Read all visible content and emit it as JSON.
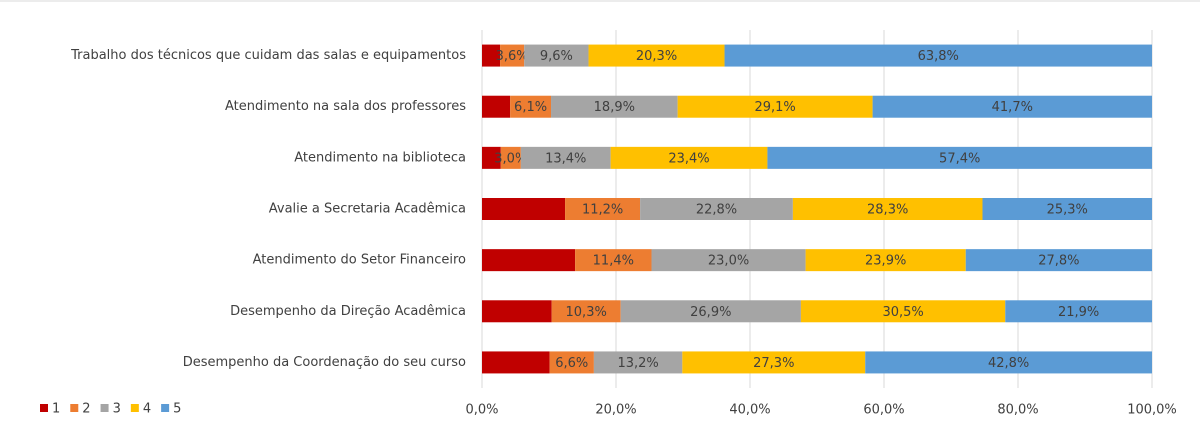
{
  "chart_data": {
    "type": "stacked_barh",
    "categories": [
      "Trabalho dos técnicos que cuidam das salas e equipamentos",
      "Atendimento na sala dos professores",
      "Atendimento na biblioteca",
      "Avalie a Secretaria Acadêmica",
      "Atendimento do Setor Financeiro",
      "Desempenho da Direção Acadêmica",
      "Desempenho da Coordenação do seu curso"
    ],
    "series": [
      {
        "name": "1",
        "color": "#c00000",
        "values": [
          2.7,
          4.2,
          2.8,
          12.4,
          13.9,
          10.4,
          10.1
        ]
      },
      {
        "name": "2",
        "color": "#ed7d31",
        "values": [
          3.6,
          6.1,
          3.0,
          11.2,
          11.4,
          10.3,
          6.6
        ],
        "value_labels": [
          "3,6%",
          "6,1%",
          "3,0%",
          "11,2%",
          "11,4%",
          "10,3%",
          "6,6%"
        ]
      },
      {
        "name": "3",
        "color": "#a5a5a5",
        "values": [
          9.6,
          18.9,
          13.4,
          22.8,
          23.0,
          26.9,
          13.2
        ],
        "value_labels": [
          "9,6%",
          "18,9%",
          "13,4%",
          "22,8%",
          "23,0%",
          "26,9%",
          "13,2%"
        ]
      },
      {
        "name": "4",
        "color": "#ffc000",
        "values": [
          20.3,
          29.1,
          23.4,
          28.3,
          23.9,
          30.5,
          27.3
        ],
        "value_labels": [
          "20,3%",
          "29,1%",
          "23,4%",
          "28,3%",
          "23,9%",
          "30,5%",
          "27,3%"
        ]
      },
      {
        "name": "5",
        "color": "#5b9bd5",
        "values": [
          63.8,
          41.7,
          57.4,
          25.3,
          27.8,
          21.9,
          42.8
        ],
        "value_labels": [
          "63,8%",
          "41,7%",
          "57,4%",
          "25,3%",
          "27,8%",
          "21,9%",
          "42,8%"
        ]
      }
    ],
    "xlim": [
      0,
      100
    ],
    "xticks": [
      {
        "value": 0,
        "label": "0,0%"
      },
      {
        "value": 20,
        "label": "20,0%"
      },
      {
        "value": 40,
        "label": "40,0%"
      },
      {
        "value": 60,
        "label": "60,0%"
      },
      {
        "value": 80,
        "label": "80,0%"
      },
      {
        "value": 100,
        "label": "100,0%"
      }
    ],
    "grid": true,
    "legend": "bottom-left"
  }
}
